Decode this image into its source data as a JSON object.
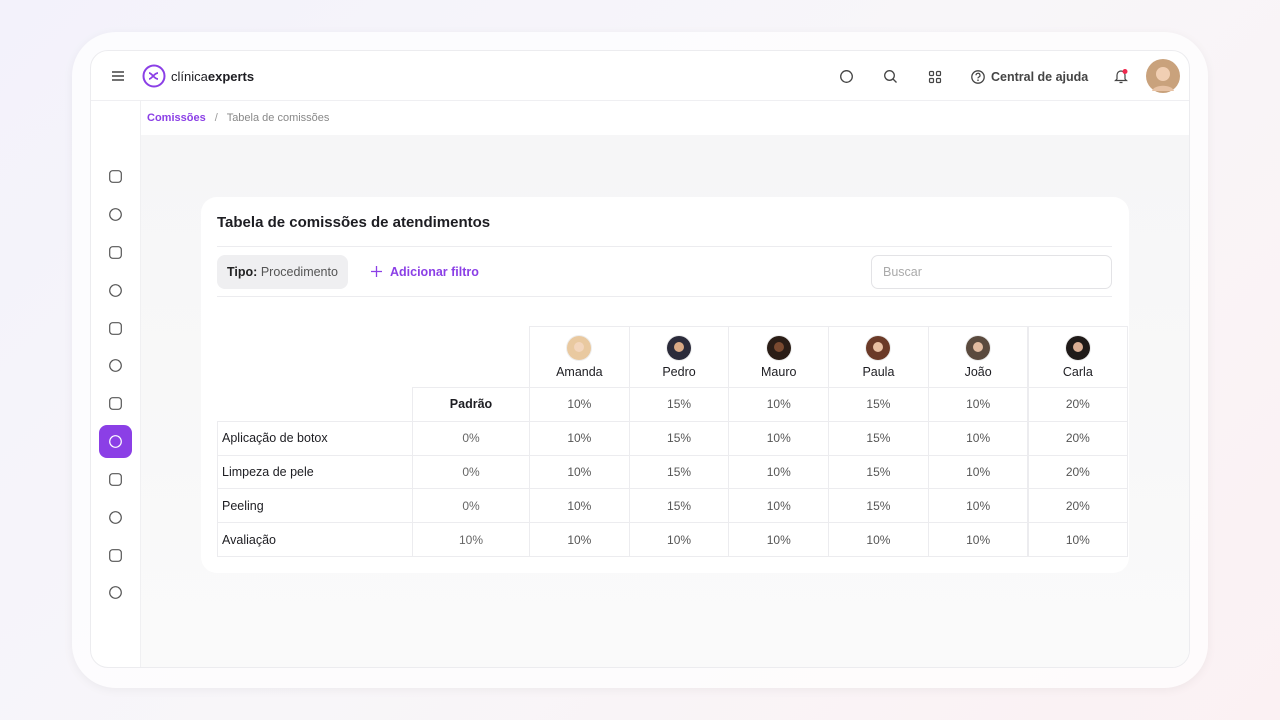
{
  "brand": {
    "prefix": "clínica",
    "suffix": "experts"
  },
  "topbar": {
    "help": "Central de ajuda"
  },
  "breadcrumb": {
    "items": [
      "Comissões",
      "Tabela de comissões"
    ],
    "separator": "/"
  },
  "card": {
    "title": "Tabela de comissões de atendimentos",
    "filter_label": "Tipo:",
    "filter_value": "Procedimento",
    "add_filter": "Adicionar filtro",
    "search_placeholder": "Buscar"
  },
  "table": {
    "columns": [
      "Amanda",
      "Pedro",
      "Mauro",
      "Paula",
      "João",
      "Carla"
    ],
    "default_row": {
      "label": "Padrão",
      "values": [
        "10%",
        "15%",
        "10%",
        "15%",
        "10%",
        "20%"
      ]
    },
    "rows": [
      {
        "label": "Aplicação de botox",
        "base": "0%",
        "values": [
          "10%",
          "15%",
          "10%",
          "15%",
          "10%",
          "20%"
        ]
      },
      {
        "label": "Limpeza de pele",
        "base": "0%",
        "values": [
          "10%",
          "15%",
          "10%",
          "15%",
          "10%",
          "20%"
        ]
      },
      {
        "label": "Peeling",
        "base": "0%",
        "values": [
          "10%",
          "15%",
          "10%",
          "15%",
          "10%",
          "20%"
        ]
      },
      {
        "label": "Avaliação",
        "base": "10%",
        "values": [
          "10%",
          "10%",
          "10%",
          "10%",
          "10%",
          "10%"
        ]
      }
    ]
  }
}
